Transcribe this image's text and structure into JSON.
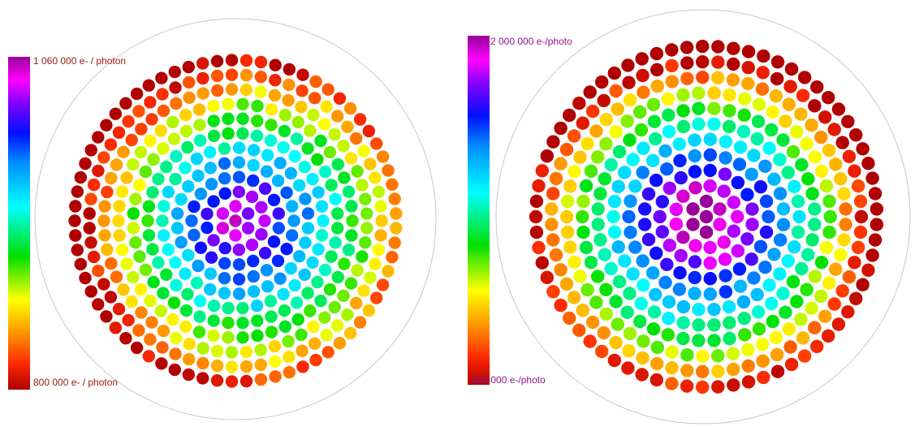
{
  "chart_data": [
    {
      "type": "heatmap",
      "colorbar": {
        "max_label": "1 060 000 e- / photon",
        "min_label": "800 000 e- / photon",
        "max_color": "#9b1a0f",
        "min_color": "#9b1a0f"
      },
      "range": [
        800000,
        1060000
      ],
      "unit": "e- / photon",
      "center_value": 1060000,
      "edge_value": 800000,
      "rings": 11
    },
    {
      "type": "heatmap",
      "colorbar": {
        "max_label": "2 000   000 e-/photo",
        "min_label": "800   000 e-/photo",
        "max_color": "#8e168e",
        "min_color": "#8e168e"
      },
      "range": [
        800000,
        2000000
      ],
      "unit": "e-/photo",
      "center_value": 2000000,
      "edge_value": 800000,
      "rings": 11
    }
  ]
}
